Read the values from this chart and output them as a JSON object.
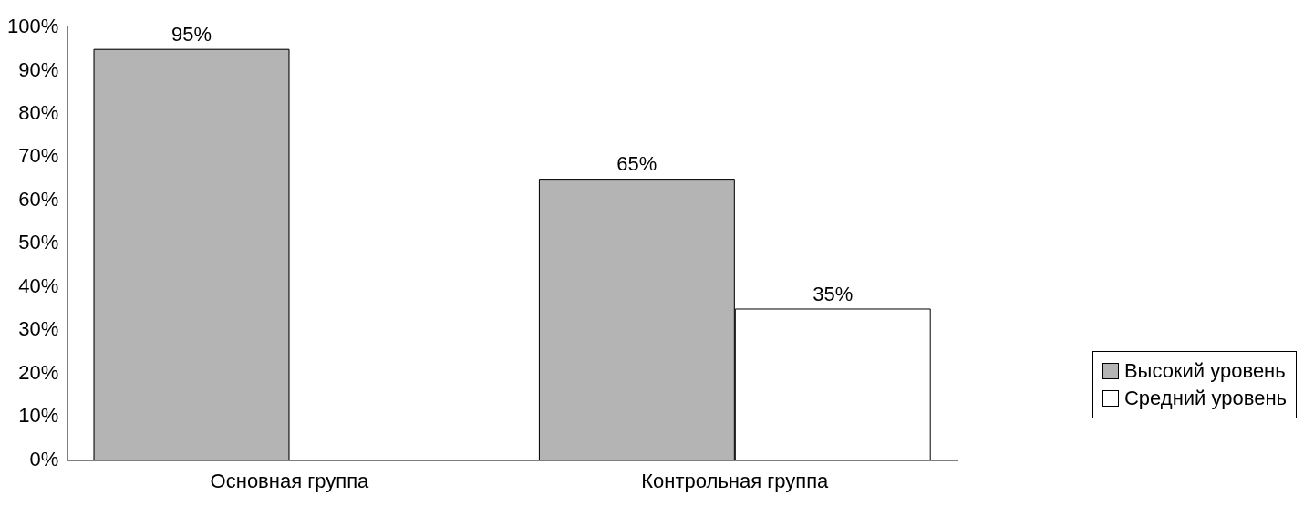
{
  "chart_data": {
    "type": "bar",
    "categories": [
      "Основная группа",
      "Контрольная группа"
    ],
    "series": [
      {
        "name": "Высокий уровень",
        "color": "#b4b4b4",
        "values": [
          95,
          65
        ],
        "value_labels": [
          "95%",
          "65%"
        ]
      },
      {
        "name": "Средний уровень",
        "color": "#ffffff",
        "values": [
          0,
          35
        ],
        "value_labels": [
          null,
          "35%"
        ]
      }
    ],
    "ylim": [
      0,
      100
    ],
    "yticks": [
      {
        "value": 0,
        "label": "0%"
      },
      {
        "value": 10,
        "label": "10%"
      },
      {
        "value": 20,
        "label": "20%"
      },
      {
        "value": 30,
        "label": "30%"
      },
      {
        "value": 40,
        "label": "40%"
      },
      {
        "value": 50,
        "label": "50%"
      },
      {
        "value": 60,
        "label": "60%"
      },
      {
        "value": 70,
        "label": "70%"
      },
      {
        "value": 80,
        "label": "80%"
      },
      {
        "value": 90,
        "label": "90%"
      },
      {
        "value": 100,
        "label": "100%"
      }
    ],
    "grid": false,
    "legend": "right"
  }
}
